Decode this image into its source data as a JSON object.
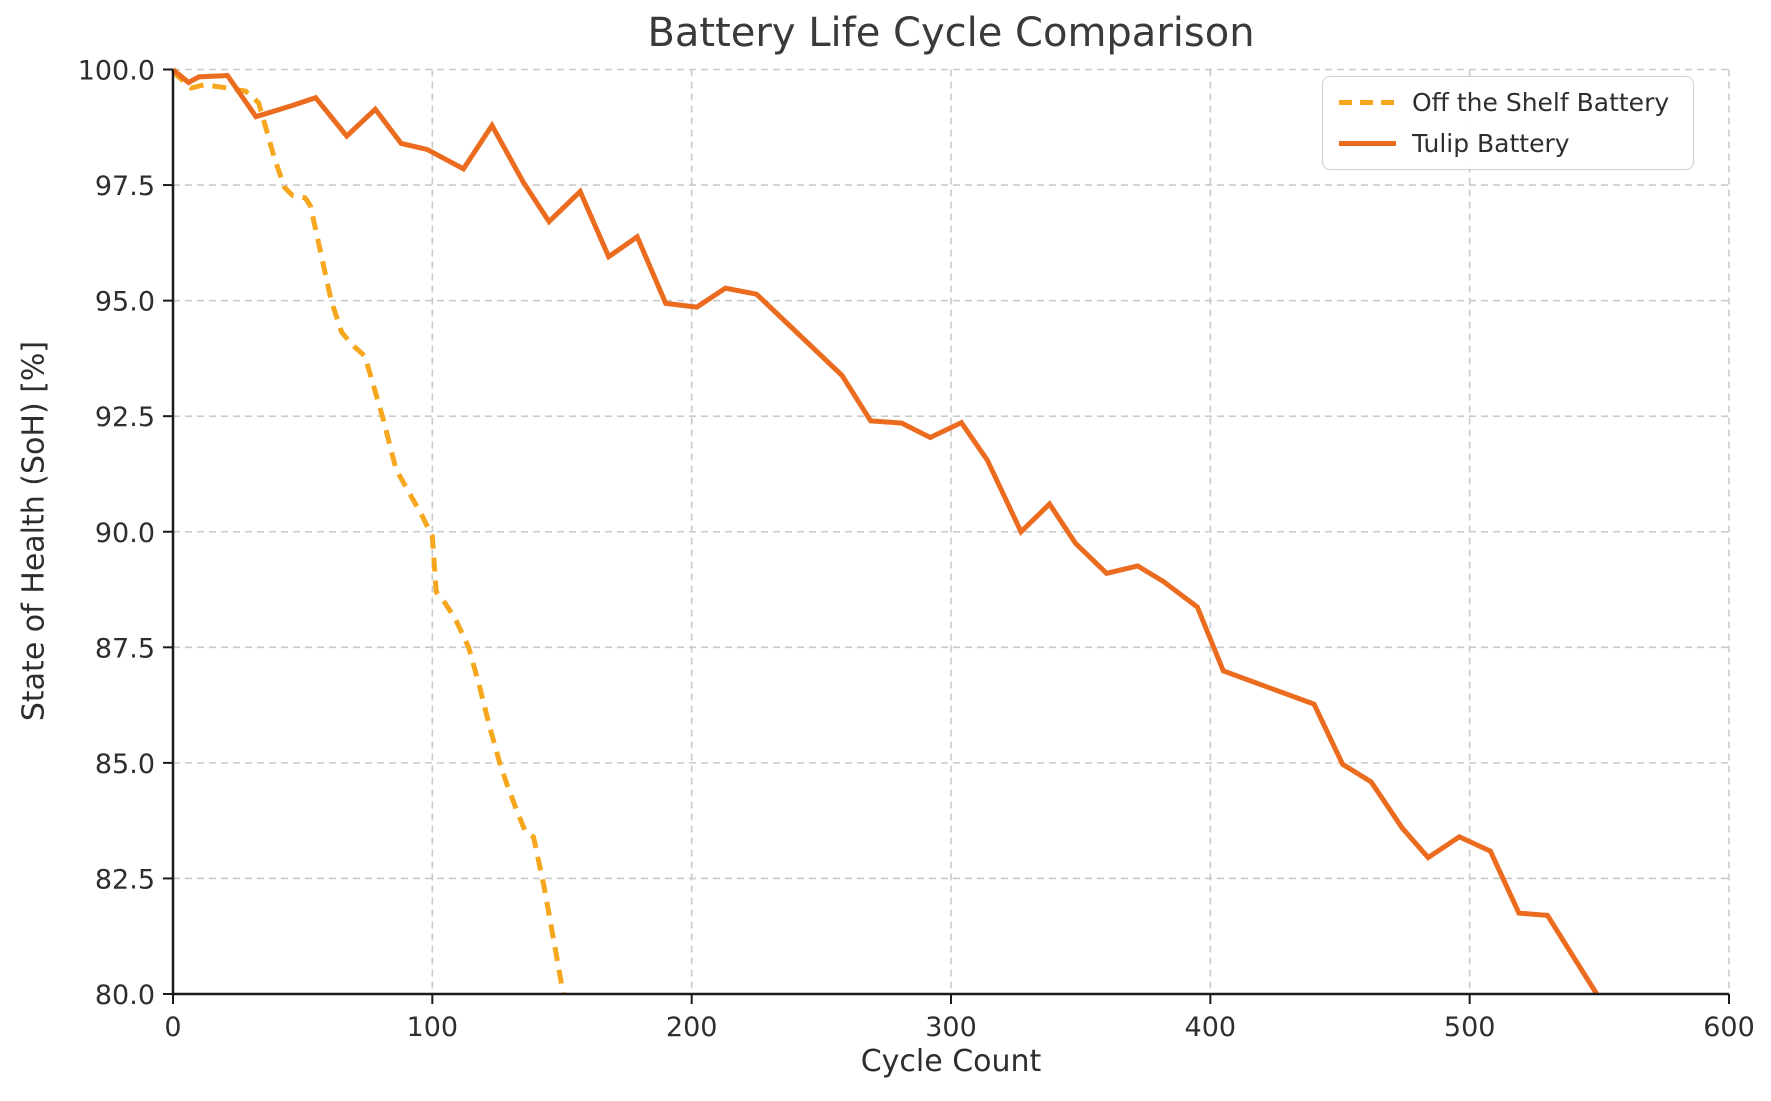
{
  "chart_data": {
    "type": "line",
    "title": "Battery Life Cycle Comparison",
    "xlabel": "Cycle Count",
    "ylabel": "State of Health (SoH) [%]",
    "xlim": [
      0,
      600
    ],
    "ylim": [
      80,
      100
    ],
    "xticks": [
      0,
      100,
      200,
      300,
      400,
      500,
      600
    ],
    "xtick_labels": [
      "0",
      "100",
      "200",
      "300",
      "400",
      "500",
      "600"
    ],
    "yticks": [
      80.0,
      82.5,
      85.0,
      87.5,
      90.0,
      92.5,
      95.0,
      97.5,
      100.0
    ],
    "ytick_labels": [
      "80.0",
      "82.5",
      "85.0",
      "87.5",
      "90.0",
      "92.5",
      "95.0",
      "97.5",
      "100.0"
    ],
    "grid": true,
    "grid_color": "#c9c9c9",
    "spine_color": "#1a1a1a",
    "legend_position": "upper right",
    "series": [
      {
        "name": "Off the Shelf Battery",
        "color": "#F6A71D",
        "linestyle": "dashed",
        "linewidth": 5,
        "x": [
          0,
          7,
          12,
          21,
          28,
          33,
          36,
          39,
          43,
          46,
          51,
          53,
          61,
          65,
          69,
          74,
          81,
          86,
          91,
          96,
          100,
          101.5,
          105,
          109,
          114,
          118,
          122,
          126,
          129,
          133,
          136,
          139,
          143,
          147,
          150.5
        ],
        "y": [
          99.95,
          99.6,
          99.67,
          99.6,
          99.53,
          99.28,
          98.7,
          98.1,
          97.45,
          97.28,
          97.22,
          97.05,
          95.0,
          94.32,
          94.05,
          93.8,
          92.45,
          91.35,
          90.85,
          90.35,
          89.9,
          88.7,
          88.45,
          88.1,
          87.5,
          86.7,
          85.8,
          85.0,
          84.5,
          83.9,
          83.5,
          83.4,
          82.35,
          81.1,
          80.0
        ]
      },
      {
        "name": "Tulip Battery",
        "color": "#EC6C1F",
        "linestyle": "solid",
        "linewidth": 5,
        "x": [
          0,
          6,
          10,
          21,
          32,
          46,
          55,
          67,
          78,
          88,
          98,
          112,
          123,
          135,
          145,
          157,
          168,
          179,
          190,
          202,
          213,
          225,
          258,
          269,
          281,
          292,
          304,
          314,
          327,
          338,
          348,
          360,
          372,
          382,
          395,
          405,
          422,
          440,
          451,
          462,
          474,
          484,
          496,
          508,
          519,
          530,
          549
        ],
        "y": [
          100.0,
          99.72,
          99.84,
          99.87,
          98.98,
          99.22,
          99.39,
          98.56,
          99.14,
          98.4,
          98.27,
          97.85,
          98.79,
          97.57,
          96.71,
          97.36,
          95.95,
          96.38,
          94.94,
          94.86,
          95.27,
          95.14,
          93.38,
          92.4,
          92.35,
          92.04,
          92.36,
          91.55,
          90.0,
          90.6,
          89.75,
          89.1,
          89.26,
          88.92,
          88.37,
          86.99,
          86.64,
          86.27,
          84.97,
          84.59,
          83.59,
          82.95,
          83.4,
          83.09,
          81.75,
          81.7,
          80.0
        ]
      }
    ]
  }
}
